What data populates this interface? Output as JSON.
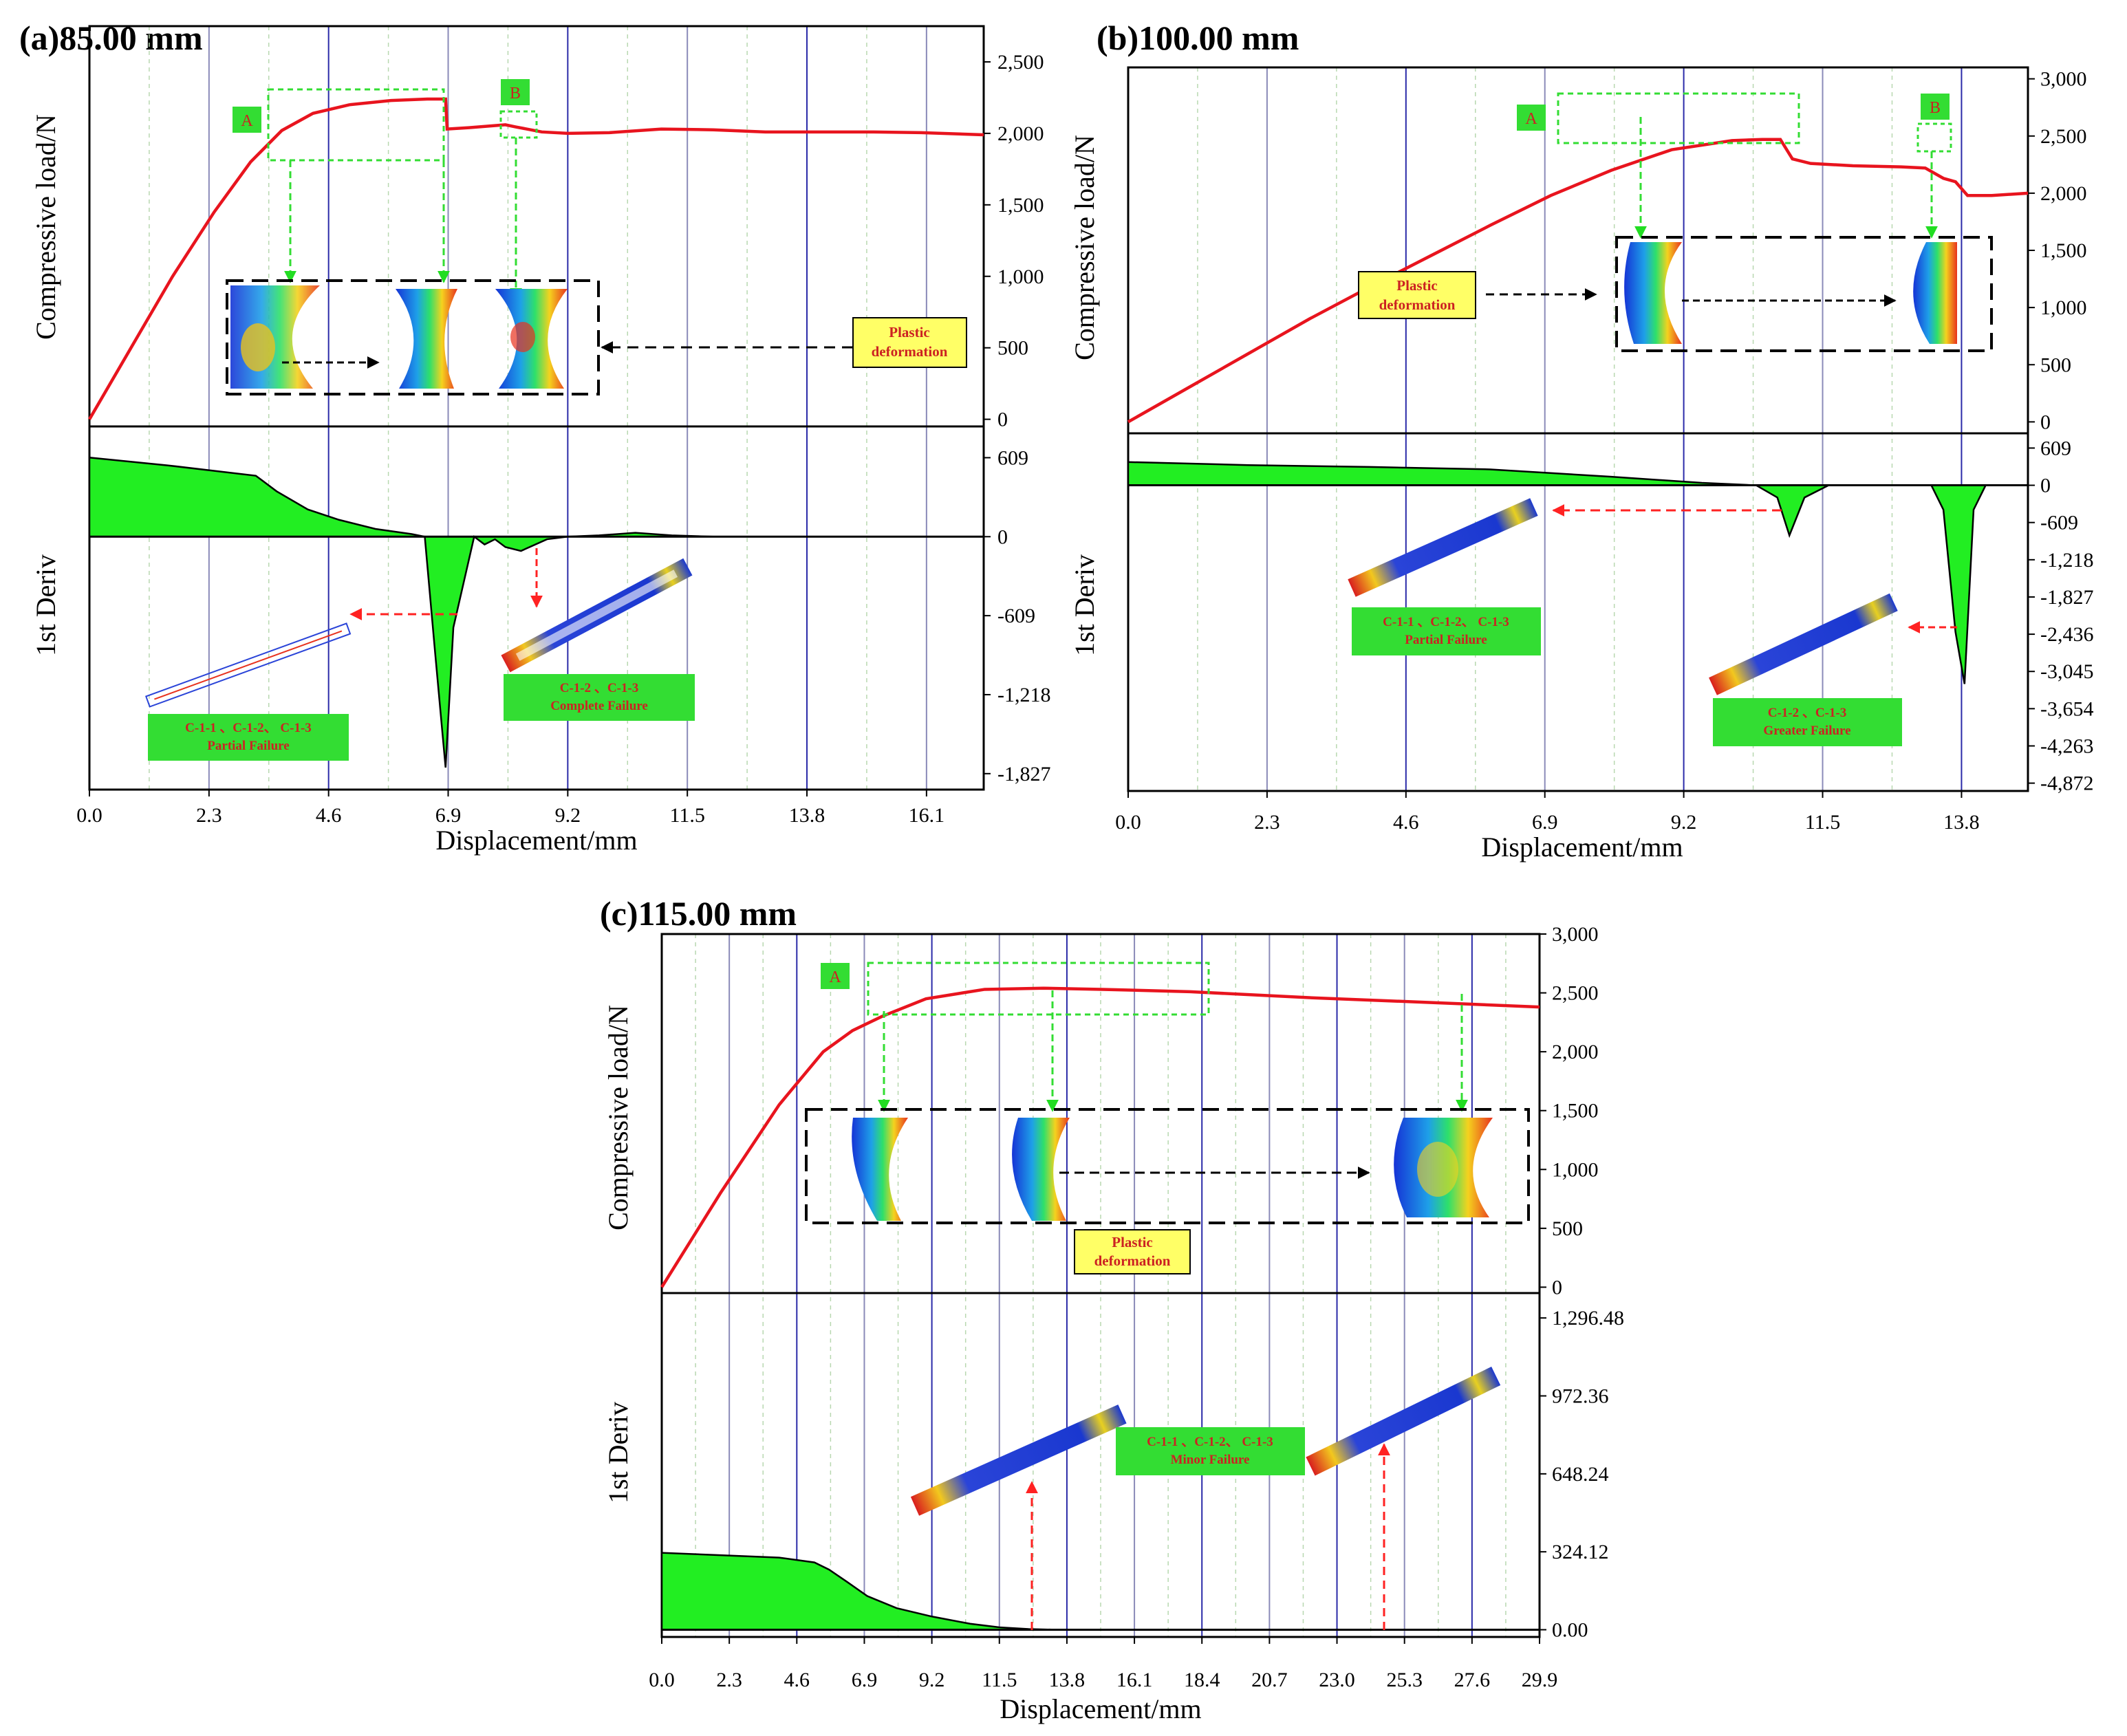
{
  "figure": {
    "panels": [
      {
        "id": "a",
        "title": "(a)85.00 mm",
        "top_ylabel": "Compressive load/N",
        "bottom_ylabel": "1st Deriv",
        "xlabel": "Displacement/mm",
        "x_ticks": [
          "0.0",
          "2.3",
          "4.6",
          "6.9",
          "9.2",
          "11.5",
          "13.8",
          "16.1"
        ],
        "top_ticks": [
          "2,500",
          "2,000",
          "1,500",
          "1,000",
          "500",
          "0"
        ],
        "bottom_ticks": [
          "609",
          "0",
          "-609",
          "-1,218",
          "-1,827"
        ],
        "callouts": {
          "A": "A",
          "B": "B",
          "plastic": [
            "Plastic",
            "deformation"
          ],
          "failure1": [
            "C-1-1 、C-1-2、 C-1-3",
            "Partial Failure"
          ],
          "failure2": [
            "C-1-2 、C-1-3",
            "Complete Failure"
          ]
        }
      },
      {
        "id": "b",
        "title": "(b)100.00 mm",
        "top_ylabel": "Compressive load/N",
        "bottom_ylabel": "1st Deriv",
        "xlabel": "Displacement/mm",
        "x_ticks": [
          "0.0",
          "2.3",
          "4.6",
          "6.9",
          "9.2",
          "11.5",
          "13.8"
        ],
        "top_ticks": [
          "3,000",
          "2,500",
          "2,000",
          "1,500",
          "1,000",
          "500",
          "0"
        ],
        "bottom_ticks": [
          "609",
          "0",
          "-609",
          "-1,218",
          "-1,827",
          "-2,436",
          "-3,045",
          "-3,654",
          "-4,263",
          "-4,872"
        ],
        "callouts": {
          "A": "A",
          "B": "B",
          "plastic": [
            "Plastic",
            "deformation"
          ],
          "failure1": [
            "C-1-1 、C-1-2、 C-1-3",
            "Partial Failure"
          ],
          "failure2": [
            "C-1-2 、C-1-3",
            "Greater Failure"
          ]
        }
      },
      {
        "id": "c",
        "title": "(c)115.00 mm",
        "top_ylabel": "Compressive load/N",
        "bottom_ylabel": "1st Deriv",
        "xlabel": "Displacement/mm",
        "x_ticks": [
          "0.0",
          "2.3",
          "4.6",
          "6.9",
          "9.2",
          "11.5",
          "13.8",
          "16.1",
          "18.4",
          "20.7",
          "23.0",
          "25.3",
          "27.6",
          "29.9"
        ],
        "top_ticks": [
          "3,000",
          "2,500",
          "2,000",
          "1,500",
          "1,000",
          "500",
          "0"
        ],
        "bottom_ticks": [
          "1,296.48",
          "972.36",
          "648.24",
          "324.12",
          "0.00"
        ],
        "callouts": {
          "A": "A",
          "plastic": [
            "Plastic",
            "deformation"
          ],
          "failure1": [
            "C-1-1 、C-1-2、 C-1-3",
            "Minor Failure"
          ]
        }
      }
    ]
  },
  "chart_data": [
    {
      "type": "line",
      "panel": "a",
      "title": "(a)85.00 mm",
      "xlabel": "Displacement/mm",
      "ylabel": "Compressive load/N",
      "xlim": [
        0,
        17.2
      ],
      "ylim": [
        -50,
        2750
      ],
      "series": [
        {
          "name": "Compressive load",
          "x": [
            0,
            0.8,
            1.6,
            2.4,
            3.1,
            3.7,
            4.3,
            5.0,
            5.8,
            6.5,
            6.85,
            6.88,
            7.3,
            8.0,
            8.2,
            8.7,
            9.2,
            10.0,
            11.0,
            12.0,
            13.0,
            14.0,
            15.0,
            16.0,
            17.2
          ],
          "y": [
            0,
            500,
            1000,
            1450,
            1800,
            2020,
            2140,
            2200,
            2230,
            2240,
            2240,
            2030,
            2040,
            2060,
            2045,
            2010,
            2000,
            2005,
            2030,
            2025,
            2010,
            2010,
            2010,
            2005,
            1990
          ]
        }
      ]
    },
    {
      "type": "area",
      "panel": "a",
      "title": "(a)85.00 mm",
      "xlabel": "Displacement/mm",
      "ylabel": "1st Deriv",
      "xlim": [
        0,
        17.2
      ],
      "ylim": [
        -1950,
        850
      ],
      "series": [
        {
          "name": "1st Deriv",
          "x": [
            0,
            1.5,
            3.2,
            3.6,
            4.2,
            4.8,
            5.5,
            6.2,
            6.45,
            6.65,
            6.85,
            7.0,
            7.4,
            7.6,
            7.8,
            8.0,
            8.3,
            8.8,
            9.2,
            9.8,
            10.5,
            11.2,
            12,
            14,
            16,
            17.2
          ],
          "y": [
            610,
            550,
            470,
            350,
            210,
            130,
            60,
            20,
            0,
            -900,
            -1780,
            -700,
            0,
            -60,
            -20,
            -80,
            -110,
            -20,
            0,
            10,
            30,
            10,
            0,
            0,
            0,
            0
          ]
        }
      ]
    },
    {
      "type": "line",
      "panel": "b",
      "title": "(b)100.00 mm",
      "xlabel": "Displacement/mm",
      "ylabel": "Compressive load/N",
      "xlim": [
        0,
        14.9
      ],
      "ylim": [
        -100,
        3100
      ],
      "series": [
        {
          "name": "Compressive load",
          "x": [
            0,
            1,
            2,
            3,
            4,
            5,
            6,
            7,
            8,
            9,
            10,
            10.5,
            10.8,
            11.0,
            11.3,
            12,
            12.8,
            13.2,
            13.5,
            13.7,
            13.9,
            14.3,
            14.9
          ],
          "y": [
            0,
            300,
            600,
            900,
            1180,
            1450,
            1720,
            1980,
            2200,
            2380,
            2460,
            2470,
            2470,
            2300,
            2260,
            2240,
            2230,
            2220,
            2130,
            2100,
            1980,
            1980,
            2000
          ]
        }
      ]
    },
    {
      "type": "area",
      "panel": "b",
      "title": "(b)100.00 mm",
      "xlabel": "Displacement/mm",
      "ylabel": "1st Deriv",
      "xlim": [
        0,
        14.9
      ],
      "ylim": [
        -5000,
        850
      ],
      "series": [
        {
          "name": "1st Deriv",
          "x": [
            0,
            2,
            4,
            6,
            8,
            9.5,
            10.4,
            10.75,
            10.95,
            11.2,
            11.6,
            12.5,
            13.3,
            13.5,
            13.7,
            13.85,
            14.0,
            14.2,
            14.9
          ],
          "y": [
            380,
            330,
            300,
            260,
            140,
            40,
            0,
            -200,
            -820,
            -200,
            0,
            0,
            0,
            -400,
            -2400,
            -3250,
            -400,
            0,
            0
          ]
        }
      ]
    },
    {
      "type": "line",
      "panel": "c",
      "title": "(c)115.00 mm",
      "xlabel": "Displacement/mm",
      "ylabel": "Compressive load/N",
      "xlim": [
        0,
        29.9
      ],
      "ylim": [
        -50,
        3000
      ],
      "series": [
        {
          "name": "Compressive load",
          "x": [
            0,
            2,
            4,
            5.5,
            6.5,
            7.5,
            9,
            11,
            13,
            15,
            18,
            22,
            26,
            29.9
          ],
          "y": [
            0,
            800,
            1550,
            2000,
            2180,
            2300,
            2450,
            2530,
            2540,
            2530,
            2510,
            2460,
            2420,
            2380
          ]
        }
      ]
    },
    {
      "type": "area",
      "panel": "c",
      "title": "(c)115.00 mm",
      "xlabel": "Displacement/mm",
      "ylabel": "1st Deriv",
      "xlim": [
        0,
        29.9
      ],
      "ylim": [
        -30,
        1400
      ],
      "series": [
        {
          "name": "1st Deriv",
          "x": [
            0,
            2,
            4,
            5.2,
            5.7,
            6.3,
            7.0,
            8.0,
            9.2,
            10.5,
            11.5,
            12.5,
            13.5,
            15,
            20,
            25,
            29.9
          ],
          "y": [
            320,
            310,
            300,
            280,
            250,
            200,
            140,
            90,
            55,
            25,
            10,
            3,
            0,
            0,
            0,
            0,
            0
          ]
        }
      ]
    }
  ]
}
